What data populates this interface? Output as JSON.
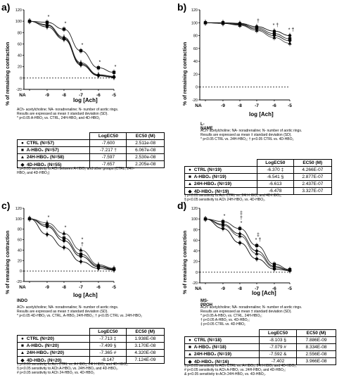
{
  "panels": [
    {
      "label": "a)",
      "ylabel": "% of remaining contraction",
      "xlabel": "log [Ach]",
      "condition": "",
      "notes": [
        "ACh- acetylcholine; NA- noradrenaline; N- number of aortic rings.",
        "Results are expressed as mean ± standard deviation (SD).",
        "* p<0.05 A-HBO₂ vs. CTRL, 24H-HBO₂ and 4D-HBO₂"
      ],
      "table_header": [
        "",
        "LogEC50",
        "EC50 (M)"
      ],
      "rows": [
        {
          "marker": "●",
          "name": "CTRL (N=57)",
          "logec50": "-7.600",
          "ec50": "2.511e-08"
        },
        {
          "marker": "■",
          "name": "A-HBO₂ (N=57)",
          "logec50": "-7.217 †",
          "ec50": "6.067e-08"
        },
        {
          "marker": "▲",
          "name": "24H-HBO₂ (N=58)",
          "logec50": "-7.597",
          "ec50": "2.530e-08"
        },
        {
          "marker": "◆",
          "name": "4D-HBO₂ (N=55)",
          "logec50": "-7.657",
          "ec50": "2.205e-08"
        }
      ],
      "footnotes": [
        "† p<0.05 sensitivity to ACh between A-HBO₂ and other groups (CTRL, 24H-",
        "HBO₂ and 4D-HBO₂)"
      ]
    },
    {
      "label": "b)",
      "ylabel": "% of remaining contraction",
      "xlabel": "log [Ach]",
      "condition": "L-NAME",
      "notes": [
        "ACh- acetylcholine; NA- noradrenaline; N- number of aortic rings.",
        "Results are expressed as mean ± standard deviation (SD).",
        "* p<0.05 CTRL vs. 24H-HBO₂; † p<0.05 CTRL vs. 4D-HBO₂"
      ],
      "table_header": [
        "",
        "LogEC50",
        "EC50 (M)"
      ],
      "rows": [
        {
          "marker": "●",
          "name": "CTRL (N=19)",
          "logec50": "-6.370 ‡",
          "ec50": "4.266E-07"
        },
        {
          "marker": "■",
          "name": "A-HBO₂ (N=19)",
          "logec50": "-6.541 §",
          "ec50": "2.877E-07"
        },
        {
          "marker": "▲",
          "name": "24H-HBO₂ (N=19)",
          "logec50": "-6.613",
          "ec50": "2.437E-07"
        },
        {
          "marker": "◆",
          "name": "4D-HBO₂ (N=19)",
          "logec50": "-6.478",
          "ec50": "3.327E-07"
        }
      ],
      "footnotes": [
        "‡ p<0.05 sensitivity to Ach CTRL vs. 24H-HBO₂ and 4D-HBO₂;",
        "§ p<0.05 sensitivity to ACh 24H-HBO₂ vs. 4D-HBO₂."
      ]
    },
    {
      "label": "c)",
      "ylabel": "% of remaining contraction",
      "xlabel": "log [Ach]",
      "condition": "INDO",
      "notes": [
        "ACh- acetylcholine; NA- noradrenaline; N- number of aortic rings.",
        "Results are expressed as mean ± standard deviation (SD).",
        "* p<0.05 4D-HBO₂ vs. CTRL, A-HBO₂ 24H-HBO₂; † p<0.05 CTRL vs. 24H-HBO₂"
      ],
      "table_header": [
        "",
        "LogEC50",
        "EC50 (M)"
      ],
      "rows": [
        {
          "marker": "●",
          "name": "CTRL (N=20)",
          "logec50": "-7.713 ‡",
          "ec50": "1.938E-08"
        },
        {
          "marker": "■",
          "name": "A-HBO₂ (N=20)",
          "logec50": "-7.499 §",
          "ec50": "3.170E-08"
        },
        {
          "marker": "▲",
          "name": "24H-HBO₂ (N=20)",
          "logec50": "-7.365 #",
          "ec50": "4.320E-08"
        },
        {
          "marker": "◆",
          "name": "4D-HBO₂ (N=20)",
          "logec50": "-8.147",
          "ec50": "7.124E-09"
        }
      ],
      "footnotes": [
        "‡ p<0.05 sensitivity to Ach CTRL vs. A-HBO₂, 24H-HBO₂ and 4D-HBO₂.",
        "§ p<0.05 sensitivity to ACh A-HBO₂ vs. 24H-HBO₂ and 4D-HBO₂.",
        "# p<0.05 sensitivity to ACh 24-HBO₂ vs. 4D-HBO₂"
      ]
    },
    {
      "label": "d)",
      "ylabel": "% of remaining contraction",
      "xlabel": "log [Ach]",
      "condition": "MS-PPOH",
      "notes": [
        "ACh- acetylcholine; NA- noradrenaline; N- number of aortic rings.",
        "Results are expressed as mean ± standard deviation (SD).",
        "* p<0.05 A-HBO₂ vs. CTRL, 24H-HBO₂;",
        "† p<0.05 A-HBO₂ vs. 4D-HBO₂;",
        "‡ p<0.05 CTRL vs. 4D-HBO₂"
      ],
      "table_header": [
        "",
        "LogEC50",
        "EC50 (M)"
      ],
      "rows": [
        {
          "marker": "●",
          "name": "CTRL (N=18)",
          "logec50": "-8.103 §",
          "ec50": "7.886E-09"
        },
        {
          "marker": "■",
          "name": "A-HBO₂ (N=18)",
          "logec50": "-7.079 #",
          "ec50": "8.334E-08"
        },
        {
          "marker": "▲",
          "name": "24H-HBO₂ (N=19)",
          "logec50": "-7.592 &",
          "ec50": "2.556E-08"
        },
        {
          "marker": "◆",
          "name": "4D-HBO₂ (N=16)",
          "logec50": "-7.402",
          "ec50": "3.966E-08"
        }
      ],
      "footnotes": [
        "§ p<0.05 sensitivity to ACh CTRL vs. A-HBO₂, 24H-HBO₂ and 4D-HBO₂;",
        "# p<0.05 sensitivity to ACh A-HBO₂ vs. 24H-HBO₂ and 4D-HBO₂;",
        "& p<0.05 sensitivity to ACh 24H-HBO₂ vs. 4D-HBO₂."
      ]
    }
  ],
  "chart_data": [
    {
      "type": "line",
      "title": "a)",
      "xlabel": "log [Ach]",
      "ylabel": "% of remaining contraction",
      "categories": [
        "NA",
        "-9",
        "-8",
        "-7",
        "-6",
        "-5"
      ],
      "ylim": [
        -20,
        120
      ],
      "yticks": [
        "-20",
        "0",
        "20",
        "40",
        "60",
        "80",
        "100",
        "120"
      ],
      "significance": [
        {
          "x": "-9",
          "mark": "*"
        },
        {
          "x": "-8",
          "mark": "*"
        },
        {
          "x": "-7",
          "mark": "*"
        },
        {
          "x": "-6",
          "mark": "*"
        },
        {
          "x": "-5",
          "mark": "*"
        }
      ],
      "series": [
        {
          "name": "CTRL",
          "marker": "circle",
          "values": [
            100,
            93,
            70,
            25,
            5,
            2
          ]
        },
        {
          "name": "A-HBO₂",
          "marker": "square",
          "values": [
            100,
            98,
            86,
            48,
            18,
            10
          ]
        },
        {
          "name": "24H-HBO₂",
          "marker": "triangle",
          "values": [
            100,
            94,
            72,
            27,
            6,
            3
          ]
        },
        {
          "name": "4D-HBO₂",
          "marker": "diamond",
          "values": [
            100,
            90,
            68,
            23,
            4,
            1
          ]
        }
      ]
    },
    {
      "type": "line",
      "title": "b)",
      "xlabel": "log [Ach]",
      "ylabel": "% of remaining contraction",
      "categories": [
        "NA",
        "-9",
        "-8",
        "-7",
        "-6",
        "-5"
      ],
      "ylim": [
        -20,
        120
      ],
      "yticks": [
        "-20",
        "0",
        "20",
        "40",
        "60",
        "80",
        "100",
        "120"
      ],
      "significance": [
        {
          "x": "-7",
          "mark": "†"
        },
        {
          "x": "-6",
          "mark": "* †"
        },
        {
          "x": "-5",
          "mark": "* †"
        }
      ],
      "series": [
        {
          "name": "CTRL",
          "marker": "circle",
          "values": [
            100,
            100,
            99,
            94,
            87,
            80
          ]
        },
        {
          "name": "A-HBO₂",
          "marker": "square",
          "values": [
            100,
            100,
            98,
            92,
            83,
            75
          ]
        },
        {
          "name": "24H-HBO₂",
          "marker": "triangle",
          "values": [
            100,
            99,
            96,
            88,
            77,
            68
          ]
        },
        {
          "name": "4D-HBO₂",
          "marker": "diamond",
          "values": [
            100,
            99,
            97,
            90,
            80,
            72
          ]
        }
      ]
    },
    {
      "type": "line",
      "title": "c)",
      "xlabel": "log [Ach]",
      "ylabel": "% of remaining contraction",
      "categories": [
        "NA",
        "-9",
        "-8",
        "-7",
        "-6",
        "-5"
      ],
      "ylim": [
        -20,
        120
      ],
      "yticks": [
        "-20",
        "0",
        "20",
        "40",
        "60",
        "80",
        "100",
        "120"
      ],
      "significance": [
        {
          "x": "-9",
          "mark": "*"
        },
        {
          "x": "-8",
          "mark": "*"
        },
        {
          "x": "-7",
          "mark": "†"
        },
        {
          "x": "-7",
          "mark": "*"
        }
      ],
      "series": [
        {
          "name": "CTRL",
          "marker": "circle",
          "values": [
            100,
            85,
            58,
            28,
            8,
            3
          ]
        },
        {
          "name": "A-HBO₂",
          "marker": "square",
          "values": [
            100,
            88,
            63,
            32,
            10,
            4
          ]
        },
        {
          "name": "24H-HBO₂",
          "marker": "triangle",
          "values": [
            100,
            92,
            72,
            40,
            12,
            5
          ]
        },
        {
          "name": "4D-HBO₂",
          "marker": "diamond",
          "values": [
            100,
            70,
            45,
            18,
            5,
            2
          ]
        }
      ]
    },
    {
      "type": "line",
      "title": "d)",
      "xlabel": "log [Ach]",
      "ylabel": "% of remaining contraction",
      "categories": [
        "NA",
        "-9",
        "-8",
        "-7",
        "-6",
        "-5"
      ],
      "ylim": [
        -20,
        120
      ],
      "yticks": [
        "-20",
        "0",
        "20",
        "40",
        "60",
        "80",
        "100",
        "120"
      ],
      "significance": [
        {
          "x": "-9",
          "mark": "*"
        },
        {
          "x": "-8",
          "mark": "*"
        },
        {
          "x": "-8",
          "mark": "†"
        },
        {
          "x": "-8",
          "mark": "‡"
        },
        {
          "x": "-7",
          "mark": "* †"
        },
        {
          "x": "-7",
          "mark": "‡"
        }
      ],
      "series": [
        {
          "name": "CTRL",
          "marker": "circle",
          "values": [
            100,
            82,
            55,
            25,
            6,
            3
          ]
        },
        {
          "name": "A-HBO₂",
          "marker": "square",
          "values": [
            100,
            95,
            82,
            50,
            15,
            5
          ]
        },
        {
          "name": "24H-HBO₂",
          "marker": "triangle",
          "values": [
            100,
            88,
            68,
            35,
            9,
            4
          ]
        },
        {
          "name": "4D-HBO₂",
          "marker": "diamond",
          "values": [
            100,
            90,
            72,
            40,
            11,
            4
          ]
        }
      ]
    }
  ]
}
